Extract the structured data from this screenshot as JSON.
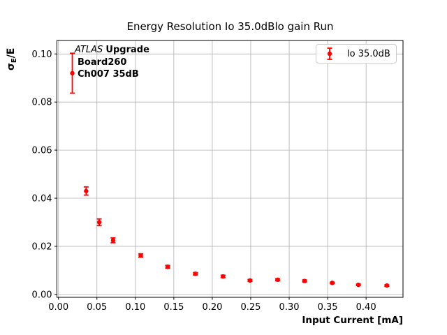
{
  "chart_data": {
    "type": "scatter",
    "title": "Energy Resolution Io 35.0dBlo gain Run",
    "xlabel": "Input Current [mA]",
    "ylabel": "σE/E",
    "ylabel_parts": {
      "sigma": "σ",
      "sub": "E",
      "rest": "/E"
    },
    "annotation": {
      "line1_italic": "ATLAS",
      "line1_bold": "Upgrade",
      "line2": "Board260",
      "line3": "Ch007 35dB"
    },
    "legend": {
      "position": "upper right",
      "label": "lo 35.0dB"
    },
    "series": [
      {
        "name": "lo 35.0dB",
        "color": "#ff0000",
        "marker": "o",
        "x": [
          0.018,
          0.036,
          0.053,
          0.071,
          0.107,
          0.142,
          0.178,
          0.214,
          0.249,
          0.285,
          0.32,
          0.356,
          0.39,
          0.427
        ],
        "y": [
          0.092,
          0.043,
          0.03,
          0.0225,
          0.0162,
          0.0115,
          0.0086,
          0.0075,
          0.0058,
          0.0061,
          0.0056,
          0.0048,
          0.004,
          0.0037
        ],
        "yerr": [
          0.0083,
          0.0017,
          0.0014,
          0.001,
          0.0007,
          0.0006,
          0.0005,
          0.0005,
          0.0004,
          0.0004,
          0.0004,
          0.0003,
          0.0003,
          0.0003
        ]
      }
    ],
    "xlim": [
      -0.002,
      0.448
    ],
    "ylim": [
      -0.0012,
      0.1056
    ],
    "xticks": [
      0.0,
      0.05,
      0.1,
      0.15,
      0.2,
      0.25,
      0.3,
      0.35,
      0.4
    ],
    "xtick_labels": [
      "0.00",
      "0.05",
      "0.10",
      "0.15",
      "0.20",
      "0.25",
      "0.30",
      "0.35",
      "0.40"
    ],
    "yticks": [
      0.0,
      0.02,
      0.04,
      0.06,
      0.08,
      0.1
    ],
    "ytick_labels": [
      "0.00",
      "0.02",
      "0.04",
      "0.06",
      "0.08",
      "0.10"
    ],
    "grid": true,
    "grid_color": "#b0b0b0",
    "spine_color": "#000000",
    "background": "#ffffff"
  }
}
